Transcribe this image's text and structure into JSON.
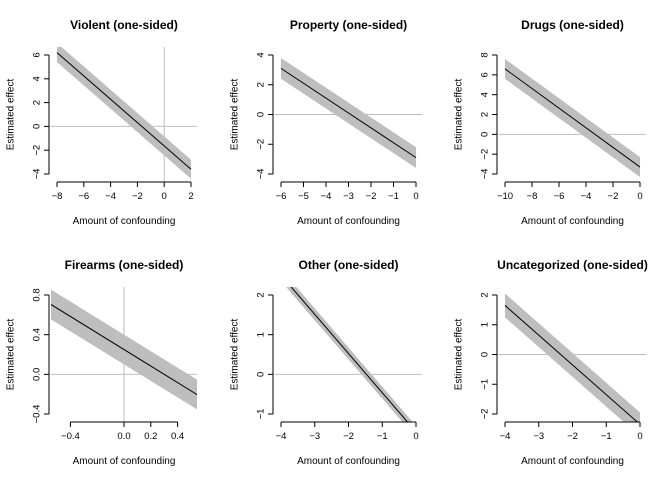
{
  "chart_data": [
    {
      "type": "line",
      "title": "Violent (one-sided)",
      "xlabel": "Amount of confounding",
      "ylabel": "Estimated effect",
      "xlim": [
        -8,
        2
      ],
      "ylim": [
        -4,
        6
      ],
      "xticks": [
        -8,
        -6,
        -4,
        -2,
        0,
        2
      ],
      "yticks": [
        -4,
        -2,
        0,
        2,
        4,
        6
      ],
      "hline": 0,
      "vline": 0,
      "x": [
        -8,
        2
      ],
      "estimate": [
        6.2,
        -3.6
      ],
      "lower": [
        5.4,
        -4.4
      ],
      "upper": [
        7.0,
        -2.8
      ]
    },
    {
      "type": "line",
      "title": "Property (one-sided)",
      "xlabel": "Amount of confounding",
      "ylabel": "Estimated effect",
      "xlim": [
        -6,
        0
      ],
      "ylim": [
        -4,
        4
      ],
      "xticks": [
        -6,
        -5,
        -4,
        -3,
        -2,
        -1,
        0
      ],
      "yticks": [
        -4,
        -2,
        0,
        2,
        4
      ],
      "hline": 0,
      "vline": null,
      "x": [
        -6,
        0
      ],
      "estimate": [
        3.1,
        -2.9
      ],
      "lower": [
        2.4,
        -3.6
      ],
      "upper": [
        3.8,
        -2.2
      ]
    },
    {
      "type": "line",
      "title": "Drugs (one-sided)",
      "xlabel": "Amount of confounding",
      "ylabel": "Estimated effect",
      "xlim": [
        -10,
        0
      ],
      "ylim": [
        -4,
        8
      ],
      "xticks": [
        -10,
        -8,
        -6,
        -4,
        -2,
        0
      ],
      "yticks": [
        -4,
        -2,
        0,
        2,
        4,
        6,
        8
      ],
      "hline": 0,
      "vline": null,
      "x": [
        -10,
        0
      ],
      "estimate": [
        6.6,
        -3.3
      ],
      "lower": [
        5.6,
        -4.3
      ],
      "upper": [
        7.6,
        -2.3
      ]
    },
    {
      "type": "line",
      "title": "Firearms (one-sided)",
      "xlabel": "Amount of confounding",
      "ylabel": "Estimated effect",
      "xlim": [
        -0.5,
        0.5
      ],
      "ylim": [
        -0.4,
        0.8
      ],
      "xticks": [
        -0.4,
        0.0,
        0.2,
        0.4
      ],
      "xtick_labels": [
        "-0.4",
        "0.0",
        "0.2",
        "0.4"
      ],
      "yticks": [
        -0.4,
        0.0,
        0.4,
        0.8
      ],
      "ytick_labels": [
        "-0.4",
        "0.0",
        "0.4",
        "0.8"
      ],
      "hline": 0,
      "vline": 0,
      "x": [
        -0.6,
        0.6
      ],
      "estimate": [
        0.75,
        -0.25
      ],
      "lower": [
        0.6,
        -0.4
      ],
      "upper": [
        0.9,
        -0.1
      ]
    },
    {
      "type": "line",
      "title": "Other (one-sided)",
      "xlabel": "Amount of confounding",
      "ylabel": "Estimated effect",
      "xlim": [
        -4,
        0
      ],
      "ylim": [
        -1,
        2
      ],
      "xticks": [
        -4,
        -3,
        -2,
        -1,
        0
      ],
      "yticks": [
        -1,
        0,
        1,
        2
      ],
      "hline": 0,
      "vline": null,
      "x": [
        -4,
        0
      ],
      "estimate": [
        2.5,
        -1.45
      ],
      "lower": [
        2.35,
        -1.6
      ],
      "upper": [
        2.65,
        -1.3
      ]
    },
    {
      "type": "line",
      "title": "Uncategorized (one-sided)",
      "xlabel": "Amount of confounding",
      "ylabel": "Estimated effect",
      "xlim": [
        -4,
        0
      ],
      "ylim": [
        -2,
        2
      ],
      "xticks": [
        -4,
        -3,
        -2,
        -1,
        0
      ],
      "yticks": [
        -2,
        -1,
        0,
        1,
        2
      ],
      "hline": 0,
      "vline": null,
      "x": [
        -4,
        0
      ],
      "estimate": [
        1.65,
        -2.35
      ],
      "lower": [
        1.25,
        -2.75
      ],
      "upper": [
        2.05,
        -1.95
      ]
    }
  ],
  "colors": {
    "band": "#bebebe",
    "line": "#000000",
    "reference": "#bebebe",
    "axis": "#000000"
  }
}
